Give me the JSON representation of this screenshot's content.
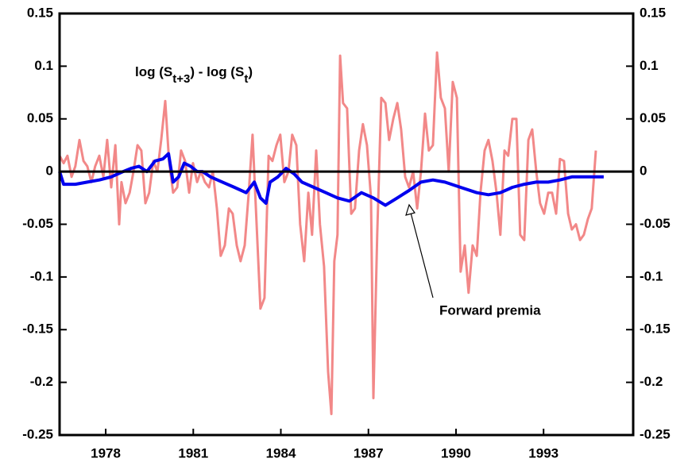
{
  "chart_data": {
    "type": "line",
    "xlim": [
      1976.42,
      1996.07
    ],
    "xticks": [
      1978,
      1981,
      1984,
      1987,
      1990,
      1993
    ],
    "ylim": [
      -0.25,
      0.15
    ],
    "yticks": [
      0.15,
      0.1,
      0.05,
      0,
      -0.05,
      -0.1,
      -0.15,
      -0.2,
      -0.25
    ],
    "y2lim": [
      -0.25,
      0.15
    ],
    "y2ticks": [
      0.15,
      0.1,
      0.05,
      0,
      -0.05,
      -0.1,
      -0.15,
      -0.2,
      -0.25
    ],
    "series": [
      {
        "name": "Forward premia",
        "color": "#0000ee",
        "x": [
          1976.42,
          1976.56,
          1976.96,
          1977.37,
          1977.78,
          1978.19,
          1978.6,
          1978.87,
          1979.14,
          1979.41,
          1979.69,
          1979.96,
          1980.15,
          1980.31,
          1980.5,
          1980.69,
          1980.91,
          1981.13,
          1981.32,
          1981.59,
          1982.0,
          1982.41,
          1982.81,
          1983.09,
          1983.3,
          1983.49,
          1983.63,
          1983.9,
          1984.18,
          1984.45,
          1984.72,
          1985.13,
          1985.54,
          1985.94,
          1986.35,
          1986.76,
          1987.17,
          1987.58,
          1987.99,
          1988.39,
          1988.8,
          1989.21,
          1989.62,
          1990.16,
          1990.71,
          1991.11,
          1991.52,
          1991.93,
          1992.34,
          1992.75,
          1993.16,
          1993.56,
          1993.97,
          1994.52,
          1995.06
        ],
        "values": [
          0.0,
          -0.012,
          -0.012,
          -0.01,
          -0.008,
          -0.005,
          0.0,
          0.003,
          0.005,
          0.0,
          0.01,
          0.012,
          0.017,
          -0.01,
          -0.005,
          0.008,
          0.005,
          0.0,
          0.0,
          -0.005,
          -0.01,
          -0.015,
          -0.02,
          -0.01,
          -0.025,
          -0.03,
          -0.01,
          -0.005,
          0.003,
          -0.002,
          -0.01,
          -0.015,
          -0.02,
          -0.025,
          -0.028,
          -0.02,
          -0.025,
          -0.032,
          -0.025,
          -0.018,
          -0.01,
          -0.008,
          -0.01,
          -0.015,
          -0.02,
          -0.022,
          -0.02,
          -0.015,
          -0.012,
          -0.01,
          -0.01,
          -0.008,
          -0.005,
          -0.005,
          -0.005
        ]
      },
      {
        "name_parts": [
          "log (S",
          "t+3",
          ") - log (S",
          "t",
          ")"
        ],
        "color": "#f28888",
        "x": [
          1976.42,
          1976.56,
          1976.69,
          1976.83,
          1976.96,
          1977.1,
          1977.24,
          1977.37,
          1977.51,
          1977.64,
          1977.78,
          1977.92,
          1978.05,
          1978.19,
          1978.33,
          1978.46,
          1978.54,
          1978.68,
          1978.82,
          1978.95,
          1979.09,
          1979.22,
          1979.36,
          1979.49,
          1979.63,
          1979.77,
          1979.9,
          1980.04,
          1980.17,
          1980.31,
          1980.45,
          1980.58,
          1980.72,
          1980.86,
          1980.99,
          1981.13,
          1981.26,
          1981.4,
          1981.54,
          1981.67,
          1981.81,
          1981.94,
          1982.08,
          1982.22,
          1982.35,
          1982.49,
          1982.62,
          1982.76,
          1982.9,
          1983.03,
          1983.17,
          1983.3,
          1983.44,
          1983.58,
          1983.71,
          1983.85,
          1983.98,
          1984.12,
          1984.26,
          1984.39,
          1984.53,
          1984.66,
          1984.8,
          1984.94,
          1985.07,
          1985.21,
          1985.34,
          1985.48,
          1985.62,
          1985.73,
          1985.83,
          1985.94,
          1986.03,
          1986.13,
          1986.27,
          1986.41,
          1986.54,
          1986.68,
          1986.81,
          1986.95,
          1987.09,
          1987.17,
          1987.3,
          1987.44,
          1987.58,
          1987.71,
          1987.85,
          1987.99,
          1988.12,
          1988.26,
          1988.39,
          1988.53,
          1988.67,
          1988.8,
          1988.94,
          1989.07,
          1989.21,
          1989.35,
          1989.48,
          1989.62,
          1989.75,
          1989.89,
          1990.03,
          1990.16,
          1990.3,
          1990.43,
          1990.57,
          1990.71,
          1990.84,
          1990.98,
          1991.11,
          1991.25,
          1991.39,
          1991.52,
          1991.66,
          1991.79,
          1991.93,
          1992.07,
          1992.2,
          1992.34,
          1992.48,
          1992.61,
          1992.75,
          1992.88,
          1993.02,
          1993.16,
          1993.29,
          1993.43,
          1993.56,
          1993.7,
          1993.84,
          1993.97,
          1994.11,
          1994.25,
          1994.38,
          1994.52,
          1994.65,
          1994.79
        ],
        "values": [
          0.015,
          0.008,
          0.015,
          -0.005,
          0.005,
          0.03,
          0.01,
          0.005,
          -0.01,
          0.005,
          0.015,
          -0.005,
          0.03,
          -0.015,
          0.025,
          -0.05,
          -0.01,
          -0.03,
          -0.02,
          0.0,
          0.025,
          0.02,
          -0.03,
          -0.02,
          0.01,
          0.0,
          0.03,
          0.067,
          0.01,
          -0.02,
          -0.015,
          0.02,
          0.01,
          -0.02,
          0.008,
          -0.01,
          0.0,
          -0.01,
          -0.015,
          0.0,
          -0.035,
          -0.08,
          -0.07,
          -0.035,
          -0.04,
          -0.07,
          -0.085,
          -0.07,
          -0.02,
          0.035,
          -0.05,
          -0.13,
          -0.12,
          0.015,
          0.01,
          0.025,
          0.035,
          -0.01,
          0.0,
          0.035,
          0.025,
          -0.05,
          -0.085,
          -0.02,
          -0.06,
          0.02,
          -0.05,
          -0.09,
          -0.19,
          -0.23,
          -0.085,
          -0.06,
          0.11,
          0.065,
          0.06,
          -0.04,
          -0.035,
          0.02,
          0.045,
          0.025,
          -0.025,
          -0.215,
          -0.06,
          0.07,
          0.065,
          0.03,
          0.05,
          0.065,
          0.04,
          -0.005,
          -0.015,
          0.0,
          -0.035,
          0.0,
          0.055,
          0.02,
          0.025,
          0.113,
          0.07,
          0.06,
          0.0,
          0.085,
          0.07,
          -0.095,
          -0.07,
          -0.115,
          -0.07,
          -0.08,
          -0.02,
          0.02,
          0.03,
          0.01,
          -0.02,
          -0.06,
          0.02,
          0.015,
          0.05,
          0.05,
          -0.06,
          -0.065,
          0.03,
          0.04,
          0.0,
          -0.03,
          -0.04,
          -0.02,
          -0.02,
          -0.04,
          0.012,
          0.01,
          -0.04,
          -0.055,
          -0.05,
          -0.065,
          -0.06,
          -0.045,
          -0.035,
          0.02
        ]
      }
    ]
  }
}
